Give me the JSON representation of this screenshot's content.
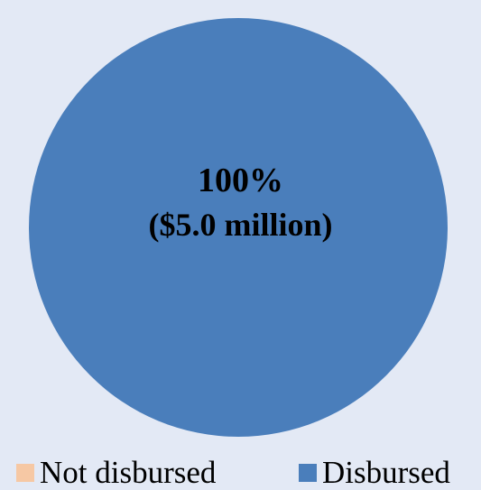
{
  "chart_data": {
    "type": "pie",
    "categories": [
      "Not disbursed",
      "Disbursed"
    ],
    "values": [
      0,
      100
    ],
    "colors": [
      "#f6c8a4",
      "#4a7ebb"
    ],
    "center_label": {
      "percent": "100%",
      "amount": "($5.0 million)"
    },
    "legend": {
      "placement": "bottom",
      "items": [
        {
          "label": "Not disbursed",
          "color": "#f6c8a4"
        },
        {
          "label": "Disbursed",
          "color": "#4a7ebb"
        }
      ]
    }
  }
}
